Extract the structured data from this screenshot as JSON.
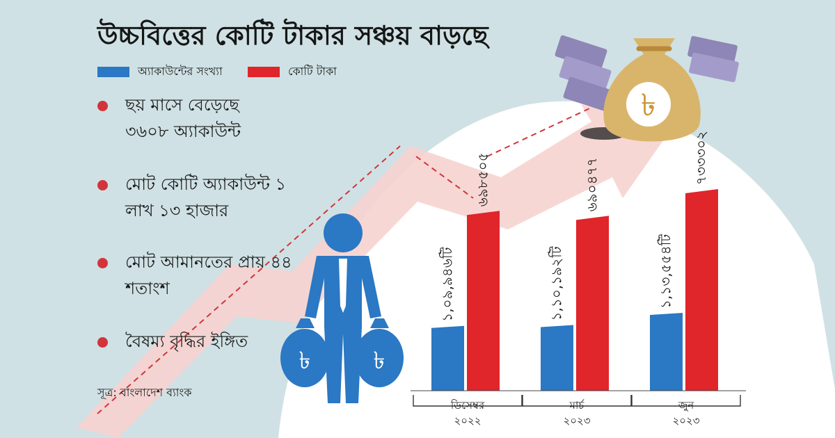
{
  "title": "উচ্চবিত্তের কোটি টাকার সঞ্চয় বাড়ছে",
  "bullets": [
    "ছয় মাসে বেড়েছে ৩৬০৮ অ্যাকাউন্ট",
    "মোট কোটি অ্যাকাউন্ট ১ লাখ ১৩ হাজার",
    "মোট আমানতের প্রায় ৪৪ শতাংশ",
    "বৈষম্য বৃদ্ধির ইঙ্গিত"
  ],
  "source": "সূত্র: বাংলাদেশ ব্যাংক",
  "icons": [
    "taka-money-bag-icon",
    "banknote-stack-icon",
    "businessman-with-money-bags-icon"
  ],
  "colors": {
    "accounts": "#2b78c4",
    "crore_taka": "#e0252b",
    "bullet": "#d2343b",
    "background": "#cfe1e4"
  },
  "chart_data": {
    "type": "bar",
    "categories": [
      {
        "month": "ডিসেম্বর",
        "year": "২০২২"
      },
      {
        "month": "মার্চ",
        "year": "২০২৩"
      },
      {
        "month": "জুন",
        "year": "২০২৩"
      }
    ],
    "series": [
      {
        "name": "অ্যাকাউন্টের সংখ্যা",
        "color": "#2b78c4",
        "values": [
          109946,
          110192,
          113554
        ],
        "labels": [
          "১,০৯,৯৪৬টি",
          "১,১০,১৯২টি",
          "১,১৩,৫৫৪টি"
        ]
      },
      {
        "name": "কোটি টাকা",
        "color": "#e0252b",
        "values": [
          698505,
          690477,
          733302
        ],
        "labels": [
          "৬৯৮৫০৫",
          "৬৯০৪৭৭",
          "৭৩৩৩০২"
        ]
      }
    ],
    "legend": "top-left",
    "grid": false
  }
}
